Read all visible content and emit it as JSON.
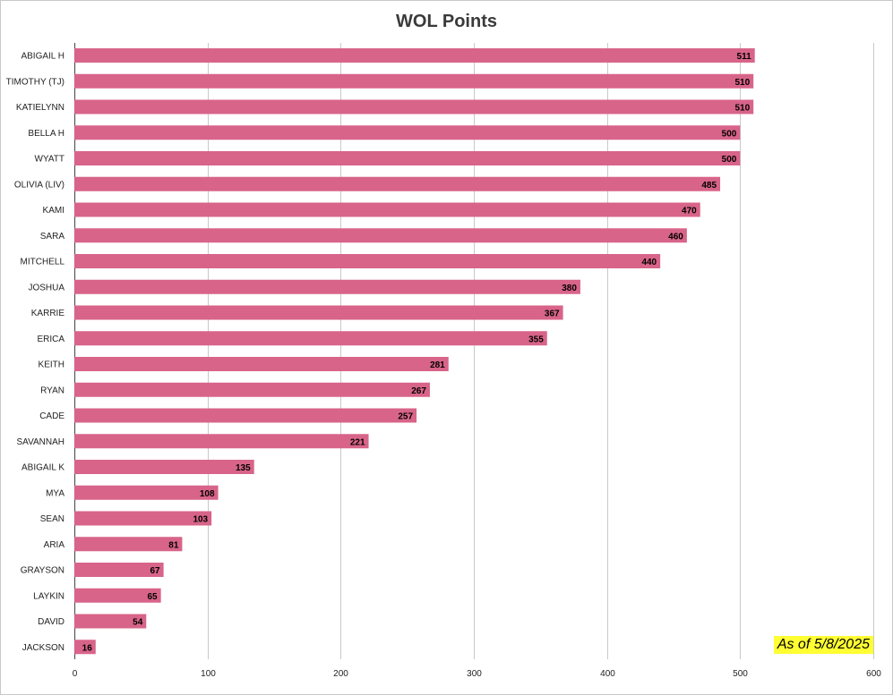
{
  "chart_data": {
    "type": "bar",
    "orientation": "horizontal",
    "title": "WOL Points",
    "xlabel": "",
    "ylabel": "",
    "xlim": [
      0,
      600
    ],
    "ticks": [
      0,
      100,
      200,
      300,
      400,
      500,
      600
    ],
    "grid": "vertical",
    "bar_color": "#d8648a",
    "categories": [
      "ABIGAIL H",
      "TIMOTHY (TJ)",
      "KATIELYNN",
      "BELLA H",
      "WYATT",
      "OLIVIA (LIV)",
      "KAMI",
      "SARA",
      "MITCHELL",
      "JOSHUA",
      "KARRIE",
      "ERICA",
      "KEITH",
      "RYAN",
      "CADE",
      "SAVANNAH",
      "ABIGAIL K",
      "MYA",
      "SEAN",
      "ARIA",
      "GRAYSON",
      "LAYKIN",
      "DAVID",
      "JACKSON"
    ],
    "values": [
      511,
      510,
      510,
      500,
      500,
      485,
      470,
      460,
      440,
      380,
      367,
      355,
      281,
      267,
      257,
      221,
      135,
      108,
      103,
      81,
      67,
      65,
      54,
      16
    ],
    "data_labels": true
  },
  "note": {
    "text": "As of 5/8/2025",
    "background": "#ffff33"
  }
}
